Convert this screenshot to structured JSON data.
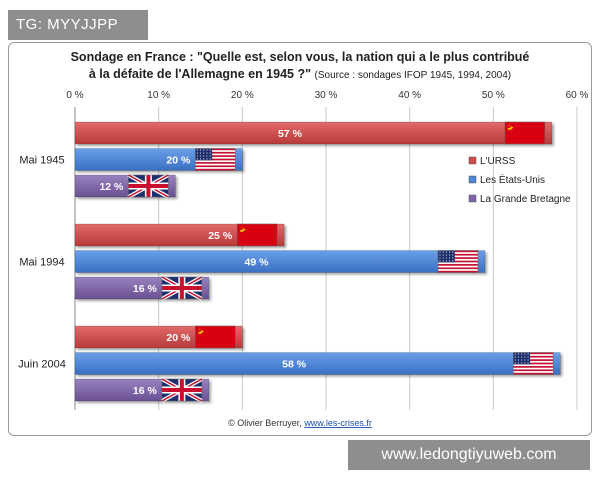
{
  "badge": {
    "text": "TG: MYYJJPP"
  },
  "watermark": {
    "text": "www.ledongtiyuweb.com"
  },
  "credit": {
    "author": "© Olivier Berruyer, ",
    "link": "www.les-crises.fr"
  },
  "chart_data": {
    "type": "bar",
    "orientation": "horizontal",
    "title": "Sondage en France : \"Quelle est, selon vous, la nation qui a le plus contribué",
    "title_line2": "à la défaite de l'Allemagne en 1945 ?\"",
    "subtitle": "(Source : sondages IFOP 1945, 1994, 2004)",
    "xlabel": "",
    "ylabel": "",
    "xlim": [
      0,
      60
    ],
    "xticks": [
      0,
      10,
      20,
      30,
      40,
      50,
      60
    ],
    "xtick_labels": [
      "0 %",
      "10 %",
      "20 %",
      "30 %",
      "40 %",
      "50 %",
      "60 %"
    ],
    "grid": true,
    "legend_position": "right",
    "categories": [
      "Mai 1945",
      "Mai 1994",
      "Juin 2004"
    ],
    "series": [
      {
        "name": "L'URSS",
        "color": "#d24b4b",
        "flag": "ussr",
        "values": [
          57,
          25,
          20
        ],
        "labels": [
          "57 %",
          "25 %",
          "20 %"
        ]
      },
      {
        "name": "Les États-Unis",
        "color": "#4d86d8",
        "flag": "usa",
        "values": [
          20,
          49,
          58
        ],
        "labels": [
          "20 %",
          "49 %",
          "58 %"
        ]
      },
      {
        "name": "La Grande Bretagne",
        "color": "#7e64a8",
        "flag": "uk",
        "values": [
          12,
          16,
          16
        ],
        "labels": [
          "12 %",
          "16 %",
          "16 %"
        ]
      }
    ]
  }
}
